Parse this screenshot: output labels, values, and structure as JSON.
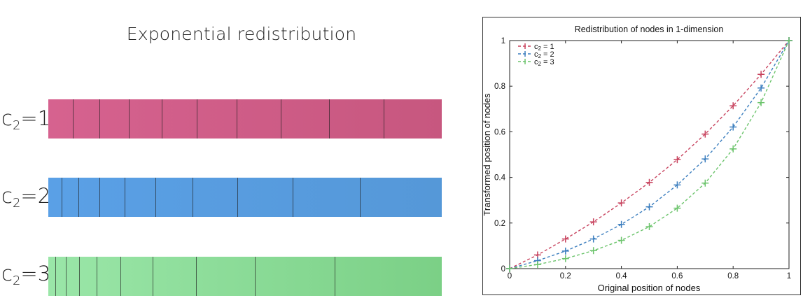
{
  "figure": {
    "left_title": "Exponential redistribution",
    "bars": [
      {
        "label_main": "c",
        "label_sub": "2",
        "label_rest": "=1",
        "color_start": "#d6628f",
        "color_end": "#c7577f",
        "divisions": [
          0.0628,
          0.1302,
          0.2048,
          0.2878,
          0.3781,
          0.4785,
          0.5901,
          0.7141,
          0.8521
        ]
      },
      {
        "label_main": "c",
        "label_sub": "2",
        "label_rest": "=2",
        "color_start": "#5aa0e6",
        "color_end": "#5598d8",
        "divisions": [
          0.0345,
          0.0772,
          0.1295,
          0.1935,
          0.2714,
          0.3672,
          0.4813,
          0.6213,
          0.7925
        ]
      },
      {
        "label_main": "c",
        "label_sub": "2",
        "label_rest": "=3",
        "color_start": "#9ae6a8",
        "color_end": "#7bd086",
        "divisions": [
          0.018,
          0.044,
          0.079,
          0.1235,
          0.1835,
          0.2645,
          0.375,
          0.525,
          0.7275
        ]
      }
    ]
  },
  "chart_data": {
    "type": "line",
    "title": "Redistribution of nodes in 1-dimension",
    "xlabel": "Original position of  nodes",
    "ylabel": "Transformed position of nodes",
    "xlim": [
      0,
      1
    ],
    "ylim": [
      0,
      1
    ],
    "xticks": [
      "0",
      "0.2",
      "0.4",
      "0.6",
      "0.8",
      "1"
    ],
    "yticks": [
      "0",
      "0.2",
      "0.4",
      "0.6",
      "0.8",
      "1"
    ],
    "legend_position": "top-left",
    "x": [
      0,
      0.1,
      0.2,
      0.3,
      0.4,
      0.5,
      0.6,
      0.7,
      0.8,
      0.9,
      1.0
    ],
    "series": [
      {
        "name_main": "c",
        "name_sub": "2",
        "name_rest": " = 1",
        "color": "#c8445f",
        "values": [
          0,
          0.06,
          0.13,
          0.205,
          0.288,
          0.378,
          0.478,
          0.59,
          0.714,
          0.852,
          1.0
        ]
      },
      {
        "name_main": "c",
        "name_sub": "2",
        "name_rest": " = 2",
        "color": "#3d7fbf",
        "values": [
          0,
          0.035,
          0.077,
          0.13,
          0.194,
          0.271,
          0.367,
          0.481,
          0.621,
          0.792,
          1.0
        ]
      },
      {
        "name_main": "c",
        "name_sub": "2",
        "name_rest": " = 3",
        "color": "#6cc46c",
        "values": [
          0,
          0.018,
          0.044,
          0.079,
          0.124,
          0.184,
          0.265,
          0.375,
          0.525,
          0.728,
          1.0
        ]
      }
    ]
  }
}
